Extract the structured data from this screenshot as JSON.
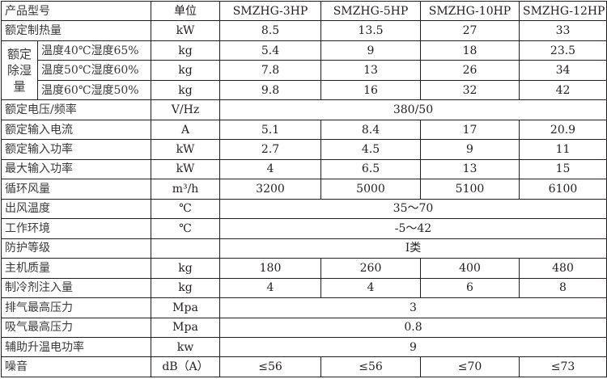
{
  "header": {
    "name": "产品型号",
    "unit": "单位",
    "models": [
      "SMZHG-3HP",
      "SMZHG-5HP",
      "SMZHG-10HP",
      "SMZHG-12HP"
    ]
  },
  "dehum_group": "额定除湿量",
  "rows": [
    {
      "label": "额定制热量",
      "unit": "kW",
      "values": [
        "8.5",
        "13.5",
        "27",
        "33"
      ]
    },
    {
      "label": "温度40℃湿度65%",
      "unit": "kg",
      "values": [
        "5.4",
        "9",
        "18",
        "23.5"
      ]
    },
    {
      "label": "温度50℃湿度60%",
      "unit": "kg",
      "values": [
        "7.8",
        "13",
        "26",
        "34"
      ]
    },
    {
      "label": "温度60℃湿度50%",
      "unit": "kg",
      "values": [
        "9.8",
        "16",
        "32",
        "42"
      ]
    },
    {
      "label": "额定电压/频率",
      "unit": "V/Hz",
      "values": [
        "380/50"
      ]
    },
    {
      "label": "额定输入电流",
      "unit": "A",
      "values": [
        "5.1",
        "8.4",
        "17",
        "20.9"
      ]
    },
    {
      "label": "额定输入功率",
      "unit": "kW",
      "values": [
        "2.7",
        "4.5",
        "9",
        "11"
      ]
    },
    {
      "label": "最大输入功率",
      "unit": "kW",
      "values": [
        "4",
        "6.5",
        "13",
        "15"
      ]
    },
    {
      "label": "循环风量",
      "unit": "m³/h",
      "values": [
        "3200",
        "5000",
        "5100",
        "6100"
      ]
    },
    {
      "label": "出风温度",
      "unit": "℃",
      "values": [
        "35～70"
      ]
    },
    {
      "label": "工作环境",
      "unit": "℃",
      "values": [
        "-5～42"
      ]
    },
    {
      "label": "防护等级",
      "unit": "",
      "values": [
        "Ⅰ类"
      ]
    },
    {
      "label": "主机质量",
      "unit": "kg",
      "values": [
        "180",
        "260",
        "400",
        "480"
      ]
    },
    {
      "label": "制冷剂注入量",
      "unit": "kg",
      "values": [
        "4",
        "4",
        "6",
        "8"
      ]
    },
    {
      "label": "排气最高压力",
      "unit": "Mpa",
      "values": [
        "3"
      ]
    },
    {
      "label": "吸气最高压力",
      "unit": "Mpa",
      "values": [
        "0.8"
      ]
    },
    {
      "label": "辅助升温电功率",
      "unit": "kw",
      "values": [
        "9"
      ]
    },
    {
      "label": "噪音",
      "unit": "dB（A）",
      "values": [
        "≤56",
        "≤56",
        "≤70",
        "≤73"
      ]
    }
  ]
}
